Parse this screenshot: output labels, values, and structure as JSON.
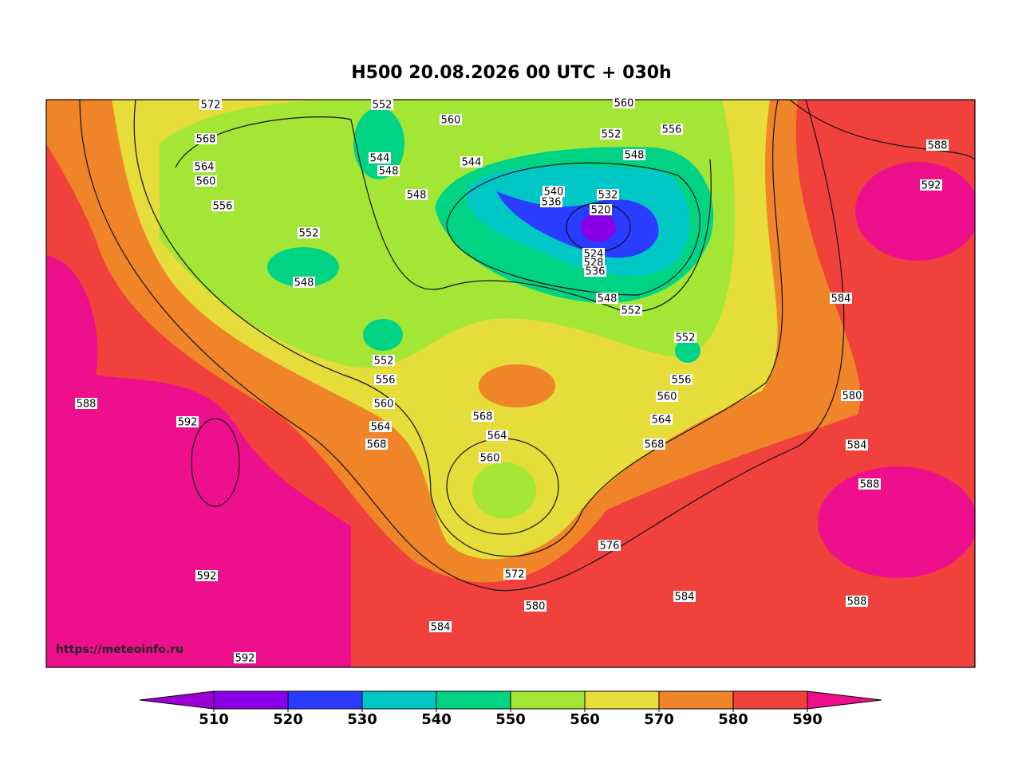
{
  "title": "H500  20.08.2026 00 UTC + 030h",
  "watermark": "https://meteoinfo.ru",
  "colorbar": {
    "ticks": [
      510,
      520,
      530,
      540,
      550,
      560,
      570,
      580,
      590
    ],
    "colors": [
      "#9b00d6",
      "#8a00e6",
      "#2a3cff",
      "#00c6c6",
      "#00d484",
      "#a3e636",
      "#e6dc3a",
      "#f08428",
      "#f0413c",
      "#ee0f8c"
    ]
  },
  "contour_labels": [
    572,
    552,
    560,
    560,
    568,
    552,
    556,
    588,
    544,
    544,
    548,
    564,
    548,
    560,
    548,
    540,
    532,
    592,
    536,
    520,
    556,
    552,
    548,
    524,
    528,
    536,
    548,
    552,
    584,
    552,
    552,
    556,
    556,
    580,
    560,
    588,
    560,
    592,
    568,
    564,
    564,
    564,
    568,
    568,
    584,
    588,
    560,
    576,
    572,
    592,
    580,
    584,
    588,
    584,
    592
  ]
}
